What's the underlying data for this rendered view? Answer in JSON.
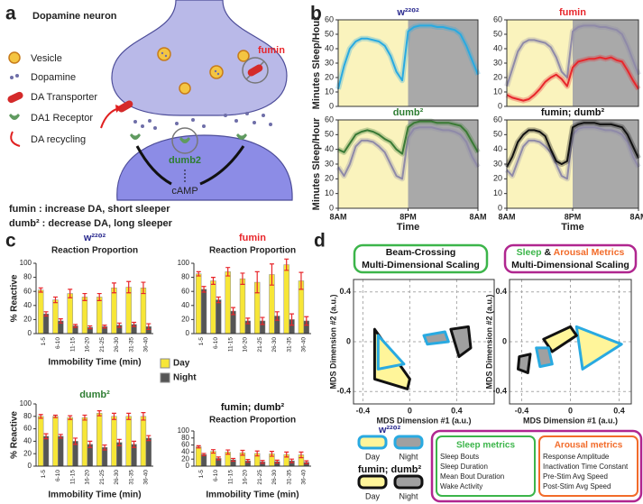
{
  "panels": [
    "a",
    "b",
    "c",
    "d"
  ],
  "diagram": {
    "title": "Dopamine neuron",
    "legend": [
      "Vesicle",
      "Dopamine",
      "DA Transporter",
      "DA1 Receptor",
      "DA recycling"
    ],
    "fumin_label": "fumin",
    "dumb_label": "dumb2",
    "camp_label": "cAMP",
    "notes": [
      "fumin : increase DA, short sleeper",
      "dumb² : decrease DA, long sleeper"
    ]
  },
  "chart_data": [
    {
      "type": "line",
      "title": "w²²⁰²",
      "title_color": "#2b2b8f",
      "ylabel": "Minutes Sleep/Hour",
      "x": [
        0,
        1,
        2,
        3,
        4,
        5,
        6,
        7,
        8,
        9,
        10,
        11,
        12,
        13,
        14,
        15,
        16,
        17,
        18,
        19,
        20,
        21,
        22,
        23,
        24
      ],
      "xlim": [
        0,
        24
      ],
      "ylim": [
        0,
        60
      ],
      "yticks": [
        0,
        10,
        20,
        30,
        40,
        50,
        60
      ],
      "shading": [
        {
          "from": 0,
          "to": 12,
          "color": "#faf3bd"
        },
        {
          "from": 12,
          "to": 24,
          "color": "#a9a9a9"
        }
      ],
      "series": [
        {
          "color": "#29aae1",
          "values": [
            12,
            28,
            40,
            45,
            47,
            47,
            46,
            45,
            42,
            35,
            24,
            18,
            52,
            55,
            56,
            56,
            56,
            55,
            55,
            54,
            53,
            50,
            42,
            32,
            22
          ]
        }
      ]
    },
    {
      "type": "line",
      "title": "fumin",
      "title_color": "#e8262b",
      "x": [
        0,
        1,
        2,
        3,
        4,
        5,
        6,
        7,
        8,
        9,
        10,
        11,
        12,
        13,
        14,
        15,
        16,
        17,
        18,
        19,
        20,
        21,
        22,
        23,
        24
      ],
      "xlim": [
        0,
        24
      ],
      "ylim": [
        0,
        60
      ],
      "yticks": [
        0,
        10,
        20,
        30,
        40,
        50,
        60
      ],
      "shading": [
        {
          "from": 0,
          "to": 12,
          "color": "#faf3bd"
        },
        {
          "from": 12,
          "to": 24,
          "color": "#a9a9a9"
        }
      ],
      "series": [
        {
          "color": "#8f8aa8",
          "values": [
            14,
            26,
            38,
            44,
            46,
            46,
            45,
            44,
            41,
            34,
            24,
            20,
            52,
            55,
            56,
            56,
            56,
            55,
            55,
            54,
            53,
            50,
            42,
            32,
            22
          ]
        },
        {
          "color": "#e8262b",
          "values": [
            8,
            6,
            5,
            4,
            5,
            8,
            12,
            17,
            20,
            22,
            19,
            14,
            27,
            31,
            32,
            33,
            33,
            34,
            33,
            34,
            32,
            31,
            25,
            18,
            12
          ]
        }
      ]
    },
    {
      "type": "line",
      "title": "dumb²",
      "title_color": "#2e7d32",
      "ylabel": "Minutes Sleep/Hour",
      "x": [
        0,
        1,
        2,
        3,
        4,
        5,
        6,
        7,
        8,
        9,
        10,
        11,
        12,
        13,
        14,
        15,
        16,
        17,
        18,
        19,
        20,
        21,
        22,
        23,
        24
      ],
      "xlim": [
        0,
        24
      ],
      "ylim": [
        0,
        60
      ],
      "yticks": [
        0,
        10,
        20,
        30,
        40,
        50,
        60
      ],
      "xticks": [
        {
          "value": 0,
          "label": "8AM"
        },
        {
          "value": 12,
          "label": "8PM"
        },
        {
          "value": 24,
          "label": "8AM"
        }
      ],
      "xlabel": "Time",
      "shading": [
        {
          "from": 0,
          "to": 12,
          "color": "#faf3bd"
        },
        {
          "from": 12,
          "to": 24,
          "color": "#a9a9a9"
        }
      ],
      "series": [
        {
          "color": "#8f8aa8",
          "values": [
            28,
            22,
            30,
            42,
            46,
            46,
            45,
            42,
            38,
            30,
            22,
            20,
            48,
            54,
            55,
            55,
            55,
            54,
            53,
            53,
            52,
            50,
            45,
            35,
            28
          ]
        },
        {
          "color": "#3a7a35",
          "values": [
            40,
            38,
            44,
            50,
            52,
            53,
            52,
            50,
            47,
            45,
            40,
            37,
            55,
            58,
            59,
            59,
            59,
            58,
            58,
            58,
            57,
            56,
            52,
            45,
            38
          ]
        }
      ]
    },
    {
      "type": "line",
      "title": "fumin; dumb²",
      "title_color": "#111111",
      "x": [
        0,
        1,
        2,
        3,
        4,
        5,
        6,
        7,
        8,
        9,
        10,
        11,
        12,
        13,
        14,
        15,
        16,
        17,
        18,
        19,
        20,
        21,
        22,
        23,
        24
      ],
      "xlim": [
        0,
        24
      ],
      "ylim": [
        0,
        60
      ],
      "yticks": [
        0,
        10,
        20,
        30,
        40,
        50,
        60
      ],
      "xticks": [
        {
          "value": 0,
          "label": "8AM"
        },
        {
          "value": 12,
          "label": "8PM"
        },
        {
          "value": 24,
          "label": "8AM"
        }
      ],
      "xlabel": "Time",
      "shading": [
        {
          "from": 0,
          "to": 12,
          "color": "#faf3bd"
        },
        {
          "from": 12,
          "to": 24,
          "color": "#a9a9a9"
        }
      ],
      "series": [
        {
          "color": "#8f8aa8",
          "values": [
            26,
            22,
            32,
            42,
            46,
            46,
            45,
            42,
            38,
            30,
            22,
            20,
            50,
            54,
            55,
            55,
            55,
            54,
            53,
            53,
            52,
            50,
            45,
            35,
            28
          ]
        },
        {
          "color": "#111111",
          "values": [
            28,
            35,
            45,
            50,
            53,
            53,
            52,
            49,
            40,
            32,
            30,
            32,
            55,
            57,
            58,
            58,
            58,
            57,
            57,
            57,
            56,
            55,
            50,
            42,
            34
          ]
        }
      ]
    },
    {
      "type": "bar",
      "title": "w²²⁰²",
      "title_color": "#2b2b8f",
      "subtitle": "Reaction Proportion",
      "ylabel": "% Reactive",
      "xlabel": "Immobility Time (min)",
      "categories": [
        "1-5",
        "6-10",
        "11-15",
        "16-20",
        "21-25",
        "26-30",
        "31-35",
        "36-40"
      ],
      "ylim": [
        0,
        100
      ],
      "yticks": [
        0,
        20,
        40,
        60,
        80,
        100
      ],
      "series": [
        {
          "name": "Day",
          "color": "#f7e637",
          "values": [
            62,
            48,
            57,
            52,
            52,
            65,
            66,
            65
          ],
          "errors": [
            3,
            4,
            6,
            5,
            5,
            7,
            8,
            8
          ]
        },
        {
          "name": "Night",
          "color": "#555555",
          "values": [
            28,
            18,
            11,
            9,
            10,
            12,
            13,
            10
          ],
          "errors": [
            3,
            3,
            2,
            2,
            2,
            3,
            3,
            4
          ]
        }
      ]
    },
    {
      "type": "bar",
      "title": "fumin",
      "title_color": "#e8262b",
      "subtitle": "Reaction Proportion",
      "categories": [
        "1-5",
        "6-10",
        "11-15",
        "16-20",
        "21-25",
        "26-30",
        "31-35",
        "36-40"
      ],
      "ylim": [
        0,
        100
      ],
      "yticks": [
        0,
        20,
        40,
        60,
        80,
        100
      ],
      "series": [
        {
          "color": "#f7e637",
          "values": [
            85,
            75,
            88,
            78,
            73,
            84,
            98,
            75
          ],
          "errors": [
            3,
            5,
            6,
            8,
            15,
            15,
            8,
            12
          ]
        },
        {
          "color": "#555555",
          "values": [
            63,
            48,
            32,
            18,
            18,
            25,
            20,
            18
          ],
          "errors": [
            4,
            4,
            5,
            4,
            5,
            6,
            8,
            6
          ]
        }
      ]
    },
    {
      "type": "bar",
      "title": "dumb²",
      "title_color": "#2e7d32",
      "ylabel": "% Reactive",
      "xlabel": "Immobility Time (min)",
      "categories": [
        "1-5",
        "6-10",
        "11-15",
        "16-20",
        "21-25",
        "26-30",
        "31-35",
        "36-40"
      ],
      "ylim": [
        0,
        100
      ],
      "yticks": [
        0,
        20,
        40,
        60,
        80,
        100
      ],
      "series": [
        {
          "color": "#f7e637",
          "values": [
            80,
            80,
            78,
            78,
            85,
            80,
            80,
            80
          ],
          "errors": [
            3,
            2,
            3,
            4,
            4,
            5,
            5,
            6
          ]
        },
        {
          "color": "#555555",
          "values": [
            48,
            48,
            40,
            35,
            30,
            38,
            35,
            45
          ],
          "errors": [
            4,
            3,
            5,
            5,
            4,
            5,
            5,
            4
          ]
        }
      ]
    },
    {
      "type": "bar",
      "title": "fumin; dumb²",
      "title_color": "#111111",
      "subtitle": "Reaction Proportion",
      "xlabel": "Immobility Time (min)",
      "categories": [
        "1-5",
        "6-10",
        "11-15",
        "16-20",
        "21-25",
        "26-30",
        "31-35",
        "36-40"
      ],
      "ylim": [
        0,
        100
      ],
      "yticks": [
        0,
        20,
        40,
        60,
        80,
        100
      ],
      "series": [
        {
          "color": "#f7e637",
          "values": [
            55,
            42,
            40,
            38,
            36,
            35,
            33,
            32
          ],
          "errors": [
            3,
            5,
            6,
            7,
            7,
            7,
            7,
            8
          ]
        },
        {
          "color": "#555555",
          "values": [
            33,
            22,
            18,
            15,
            12,
            13,
            15,
            11
          ],
          "errors": [
            3,
            4,
            4,
            4,
            4,
            4,
            5,
            4
          ]
        }
      ]
    },
    {
      "type": "mds",
      "frame_color": "#3cb54a",
      "title_lines": [
        [
          {
            "text": "Beam-Crossing",
            "color": "#111111"
          }
        ],
        [
          {
            "text": "Multi-Dimensional Scaling",
            "color": "#111111"
          }
        ]
      ],
      "xlabel": "MDS Dimension #1 (a.u.)",
      "ylabel": "MDS Dimension #2 (a.u.)",
      "xlim": [
        -0.48,
        0.72
      ],
      "ylim": [
        -0.5,
        0.5
      ],
      "xticks": [
        -0.4,
        0,
        0.4
      ],
      "yticks": [
        -0.4,
        0,
        0.4
      ],
      "grid": true,
      "series": [
        {
          "stroke": "#111111",
          "fill": "#fff59a",
          "x": [
            -0.3,
            -0.3,
            -0.02,
            0.0
          ],
          "y": [
            0.1,
            -0.3,
            -0.38,
            -0.3
          ]
        },
        {
          "stroke": "#29aae1",
          "fill": "#fff59a",
          "x": [
            -0.27,
            -0.27,
            -0.05
          ],
          "y": [
            0.05,
            -0.22,
            -0.18
          ]
        },
        {
          "stroke": "#29aae1",
          "fill": "#a0a0a0",
          "x": [
            0.12,
            0.3,
            0.33,
            0.15
          ],
          "y": [
            0.05,
            0.08,
            0.0,
            -0.02
          ]
        },
        {
          "stroke": "#111111",
          "fill": "#a0a0a0",
          "x": [
            0.35,
            0.5,
            0.52,
            0.42
          ],
          "y": [
            0.1,
            0.12,
            -0.05,
            -0.12
          ]
        }
      ]
    },
    {
      "type": "mds",
      "frame_color": "#b0268f",
      "title_lines": [
        [
          {
            "text": "Sleep",
            "color": "#3cb54a"
          },
          {
            "text": " & ",
            "color": "#111111"
          },
          {
            "text": "Arousal Metrics",
            "color": "#f26b2a"
          }
        ],
        [
          {
            "text": "Multi-Dimensional Scaling",
            "color": "#111111"
          }
        ]
      ],
      "xlabel": "MDS Dimension #1 (a.u.)",
      "ylabel": "MDS Dimension #2 (a.u.)",
      "xlim": [
        -0.5,
        0.5
      ],
      "ylim": [
        -0.5,
        0.5
      ],
      "xticks": [
        -0.4,
        0,
        0.4
      ],
      "yticks": [
        -0.4,
        0,
        0.4
      ],
      "grid": true,
      "series": [
        {
          "stroke": "#29aae1",
          "fill": "#fff59a",
          "x": [
            0.05,
            0.42,
            0.1
          ],
          "y": [
            0.12,
            -0.02,
            -0.22
          ]
        },
        {
          "stroke": "#111111",
          "fill": "#fff59a",
          "x": [
            -0.22,
            0.0,
            0.05,
            -0.15
          ],
          "y": [
            0.02,
            0.12,
            0.05,
            -0.08
          ]
        },
        {
          "stroke": "#29aae1",
          "fill": "#a0a0a0",
          "x": [
            -0.28,
            -0.18,
            -0.15,
            -0.25
          ],
          "y": [
            -0.05,
            -0.05,
            -0.18,
            -0.2
          ]
        },
        {
          "stroke": "#111111",
          "fill": "#a0a0a0",
          "x": [
            -0.42,
            -0.33,
            -0.35,
            -0.43
          ],
          "y": [
            -0.12,
            -0.1,
            -0.25,
            -0.22
          ]
        }
      ]
    }
  ],
  "mds_legend": {
    "entries": [
      {
        "name": "w²²⁰²",
        "outline": "#29aae1",
        "text_color": "#2b2b8f"
      },
      {
        "name": "fumin; dumb²",
        "outline": "#111111",
        "text_color": "#111111"
      }
    ],
    "states": [
      {
        "name": "Day",
        "fill": "#fff59a"
      },
      {
        "name": "Night",
        "fill": "#a0a0a0"
      }
    ]
  },
  "metrics": [
    {
      "title": "Sleep metrics",
      "color": "#3cb54a",
      "items": [
        "Sleep Bouts",
        "Sleep Duration",
        "Mean Bout Duration",
        "Wake Activity"
      ]
    },
    {
      "title": "Arousal metrics",
      "color": "#f26b2a",
      "items": [
        "Response Amplitude",
        "Inactivation Time Constant",
        "Pre-Stim Avg Speed",
        "Post-Stim Avg Speed"
      ]
    }
  ]
}
